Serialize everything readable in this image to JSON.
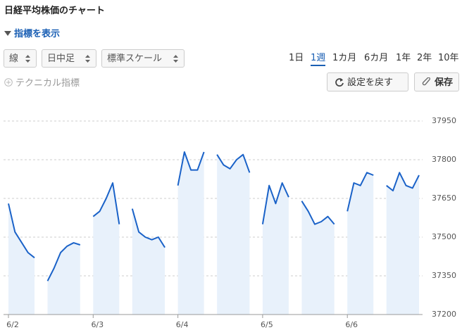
{
  "header": {
    "title": "日経平均株価のチャート",
    "toggle": "指標を表示"
  },
  "controls": {
    "dropdowns": [
      "線",
      "日中足",
      "標準スケール"
    ],
    "periods": [
      "1日",
      "1週",
      "1カ月",
      "6カ月",
      "1年",
      "2年",
      "10年"
    ],
    "selected_period": 1,
    "technical": "テクニカル指標",
    "reset_button": "設定を戻す",
    "save_button": "保存"
  },
  "chart_data": {
    "type": "line",
    "categories": [
      "6/2",
      null,
      null,
      null,
      null,
      null,
      null,
      null,
      null,
      null,
      null,
      null,
      null,
      "6/3",
      null,
      null,
      null,
      null,
      null,
      null,
      null,
      null,
      null,
      null,
      null,
      null,
      "6/4",
      null,
      null,
      null,
      null,
      null,
      null,
      null,
      null,
      null,
      null,
      null,
      null,
      "6/5",
      null,
      null,
      null,
      null,
      null,
      null,
      null,
      null,
      null,
      null,
      null,
      null,
      "6/6",
      null,
      null,
      null,
      null,
      null,
      null,
      null,
      null,
      null,
      null,
      null
    ],
    "series": [
      {
        "name": "日経平均株価",
        "color": "#1a62c8",
        "values": [
          37630,
          37520,
          37480,
          37440,
          37420,
          null,
          37330,
          37380,
          37440,
          37465,
          37478,
          37470,
          null,
          37580,
          37600,
          37650,
          37710,
          37550,
          null,
          37610,
          37520,
          37500,
          37490,
          37500,
          37460,
          null,
          37700,
          37830,
          37760,
          37760,
          37830,
          null,
          37820,
          37780,
          37765,
          37800,
          37820,
          37750,
          null,
          37550,
          37700,
          37630,
          37710,
          37655,
          null,
          37640,
          37600,
          37550,
          37560,
          37580,
          37550,
          null,
          37600,
          37710,
          37700,
          37750,
          37740,
          null,
          37700,
          37680,
          37750,
          37700,
          37690,
          37740
        ]
      }
    ],
    "ylim": [
      37200,
      37950
    ],
    "yticks": [
      37200,
      37350,
      37500,
      37650,
      37800,
      37950
    ],
    "grid": true,
    "area_color": "#e8f1fb"
  }
}
